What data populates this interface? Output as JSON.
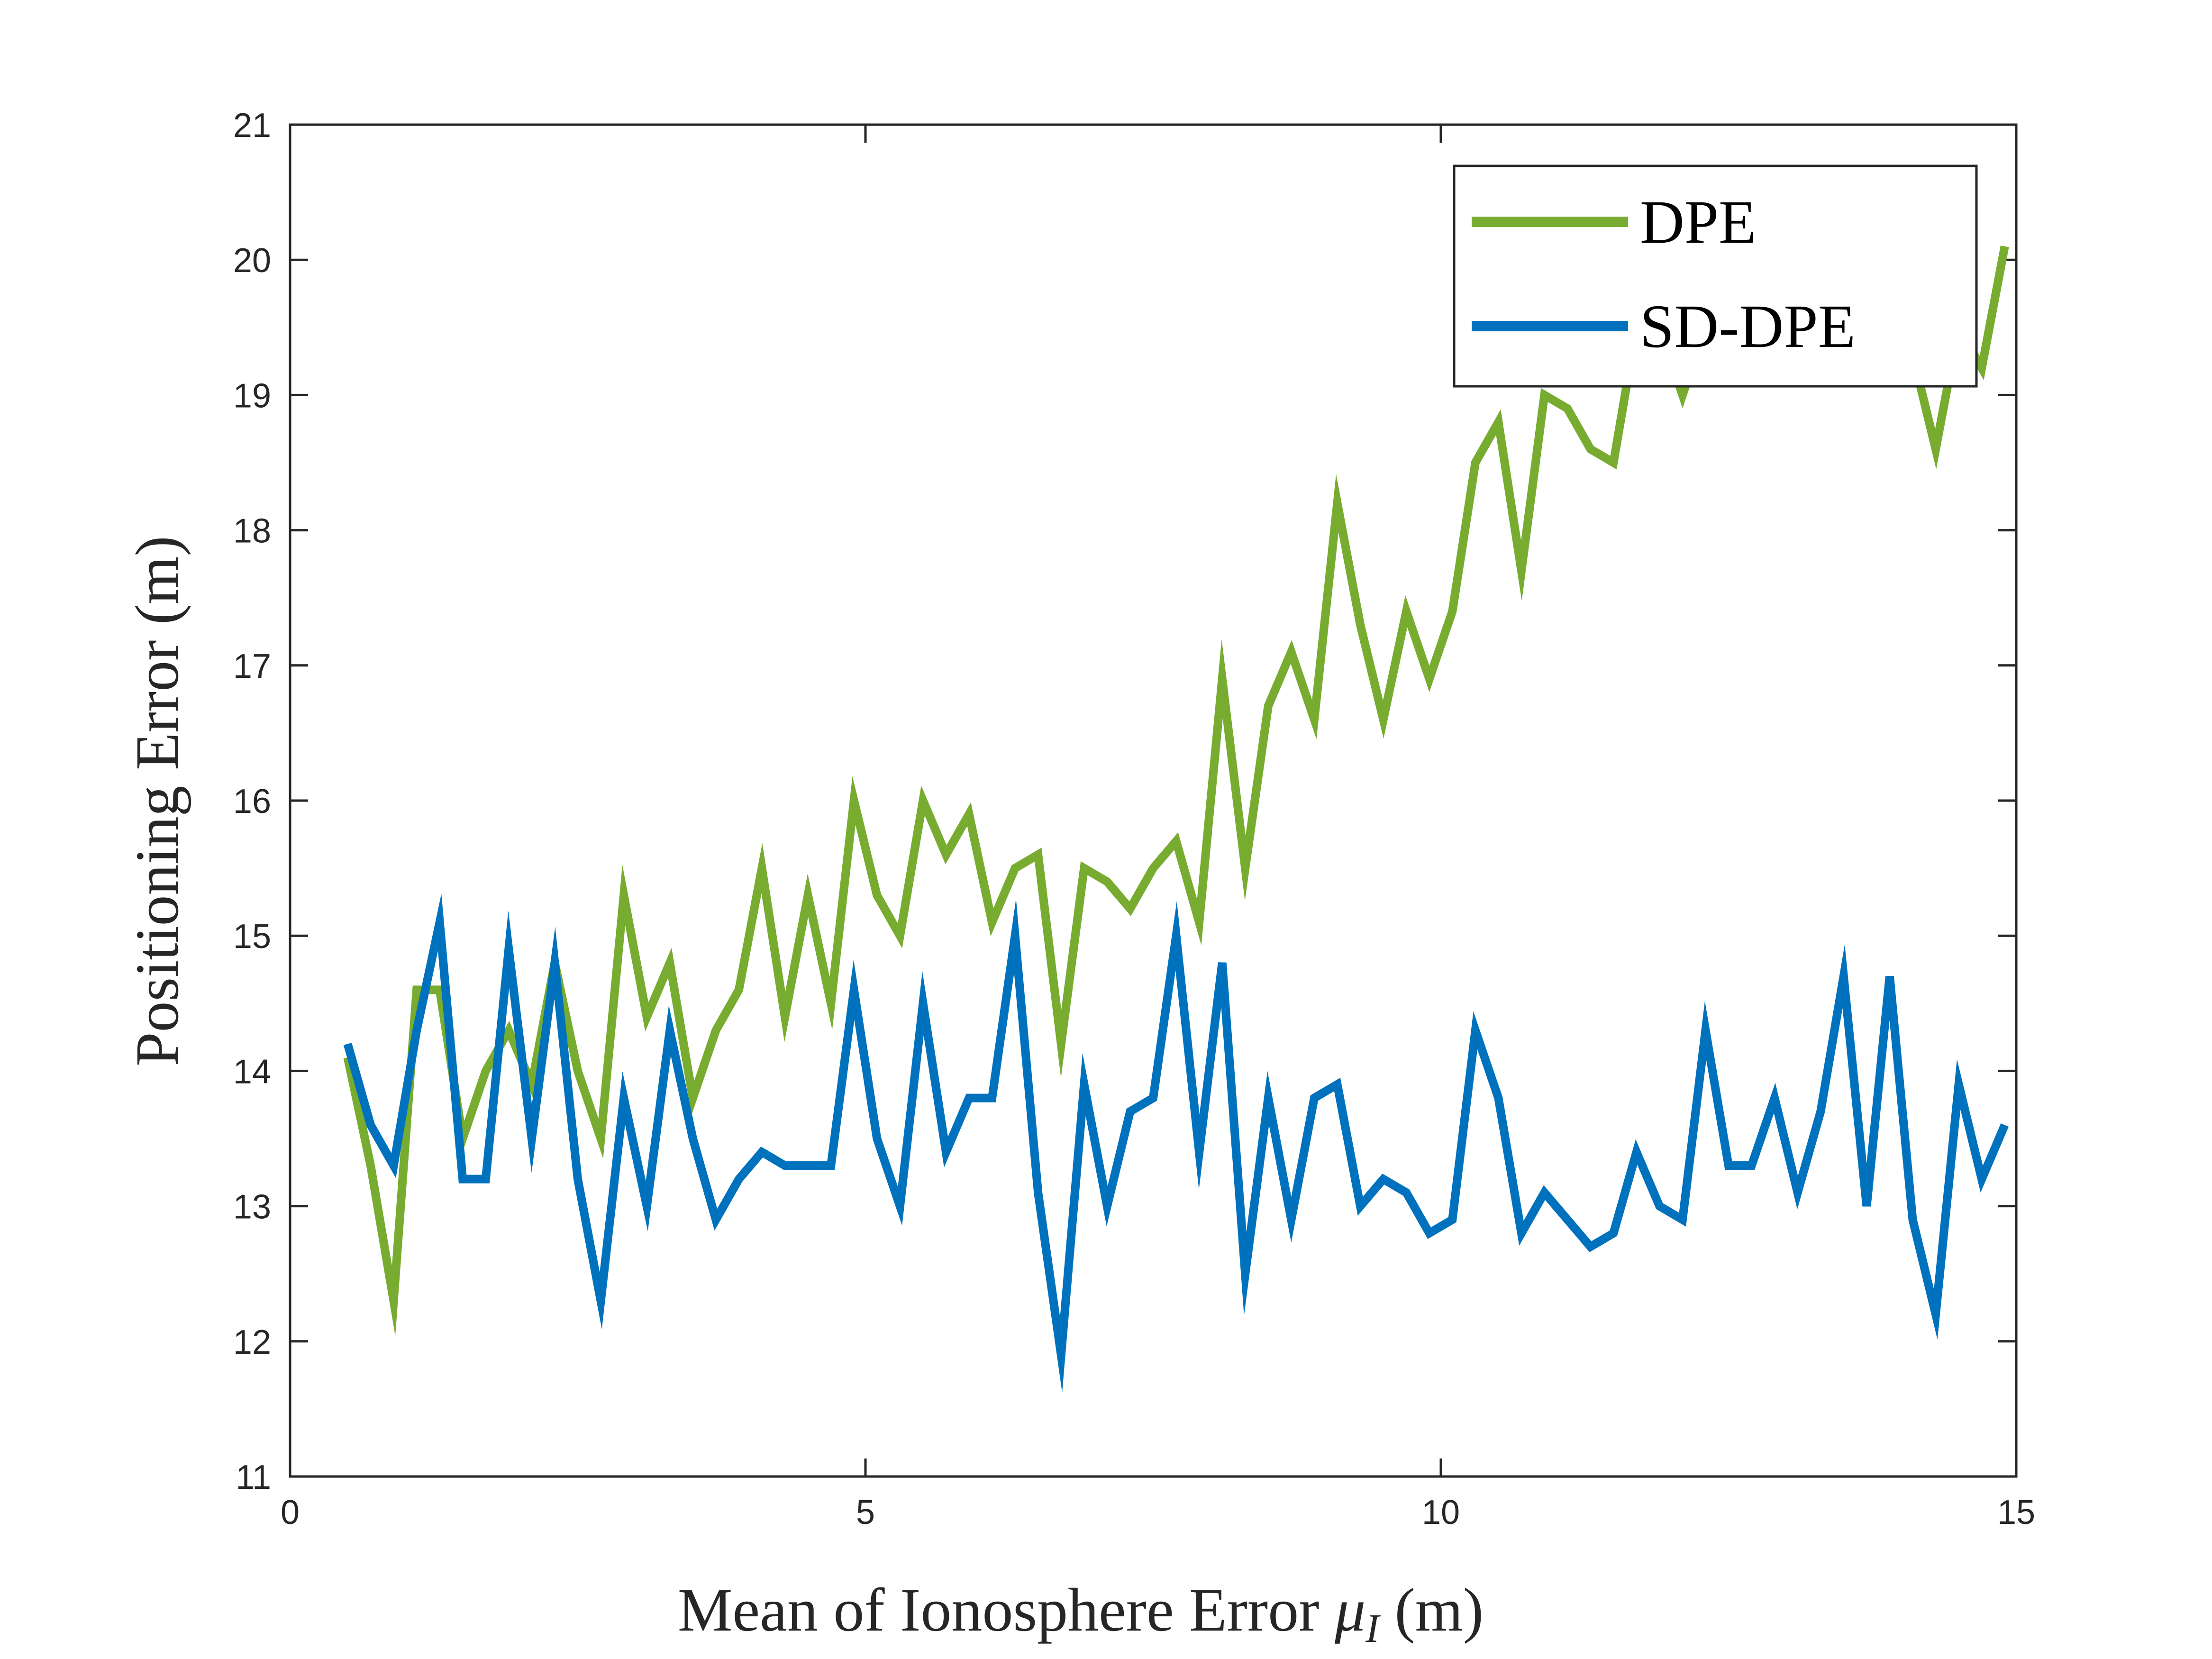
{
  "chart_data": {
    "type": "line",
    "xlabel": "Mean of Ionosphere Error",
    "xlabel_symbol": "μ",
    "xlabel_subscript": "I",
    "xlabel_unit": "(m)",
    "ylabel": "Positioning Error (m)",
    "xlim": [
      0,
      15
    ],
    "ylim": [
      11,
      21
    ],
    "x_ticks": [
      "0",
      "5",
      "10",
      "15"
    ],
    "y_ticks": [
      "11",
      "12",
      "13",
      "14",
      "15",
      "16",
      "17",
      "18",
      "19",
      "20",
      "21"
    ],
    "grid": false,
    "legend_position": "top-right",
    "x": [
      0.5,
      0.7,
      0.9,
      1.1,
      1.3,
      1.5,
      1.7,
      1.9,
      2.1,
      2.3,
      2.5,
      2.7,
      2.9,
      3.1,
      3.3,
      3.5,
      3.7,
      3.9,
      4.1,
      4.3,
      4.5,
      4.7,
      4.9,
      5.1,
      5.3,
      5.5,
      5.7,
      5.9,
      6.1,
      6.3,
      6.5,
      6.7,
      6.9,
      7.1,
      7.3,
      7.5,
      7.7,
      7.9,
      8.1,
      8.3,
      8.5,
      8.7,
      8.9,
      9.1,
      9.3,
      9.5,
      9.7,
      9.9,
      10.1,
      10.3,
      10.5,
      10.7,
      10.9,
      11.1,
      11.3,
      11.5,
      11.7,
      11.9,
      12.1,
      12.3,
      12.5,
      12.7,
      12.9,
      13.1,
      13.3,
      13.5,
      13.7,
      13.9,
      14.1,
      14.3,
      14.5,
      14.7,
      14.9
    ],
    "series": [
      {
        "name": "DPE",
        "color": "#77AC30",
        "values": [
          14.1,
          13.3,
          12.3,
          14.6,
          14.6,
          13.5,
          14.0,
          14.3,
          13.9,
          14.8,
          14.0,
          13.5,
          15.3,
          14.4,
          14.8,
          13.8,
          14.3,
          14.6,
          15.5,
          14.4,
          15.3,
          14.5,
          16.0,
          15.3,
          15.0,
          16.0,
          15.6,
          15.9,
          15.1,
          15.5,
          15.6,
          14.2,
          15.5,
          15.4,
          15.2,
          15.5,
          15.7,
          15.1,
          16.9,
          15.5,
          16.7,
          17.1,
          16.6,
          18.2,
          17.3,
          16.6,
          17.4,
          16.9,
          17.4,
          18.5,
          18.8,
          17.7,
          19.0,
          18.9,
          18.6,
          18.5,
          19.5,
          19.5,
          19.0,
          19.5,
          19.8,
          20.2,
          19.3,
          19.6,
          19.2,
          19.5,
          20.0,
          19.4,
          19.3,
          18.6,
          19.5,
          19.2,
          20.1
        ]
      },
      {
        "name": "SD-DPE",
        "color": "#0072BD",
        "values": [
          14.2,
          13.6,
          13.3,
          14.3,
          15.1,
          13.2,
          13.2,
          14.9,
          13.5,
          14.8,
          13.2,
          12.3,
          13.8,
          13.0,
          14.3,
          13.5,
          12.9,
          13.2,
          13.4,
          13.3,
          13.3,
          13.3,
          14.6,
          13.5,
          13.0,
          14.5,
          13.4,
          13.8,
          13.8,
          15.0,
          13.1,
          11.9,
          13.9,
          13.0,
          13.7,
          13.8,
          15.0,
          13.4,
          14.8,
          12.5,
          13.8,
          12.9,
          13.8,
          13.9,
          13.0,
          13.2,
          13.1,
          12.8,
          12.9,
          14.3,
          13.8,
          12.8,
          13.1,
          12.9,
          12.7,
          12.8,
          13.4,
          13.0,
          12.9,
          14.3,
          13.3,
          13.3,
          13.8,
          13.1,
          13.7,
          14.7,
          13.0,
          14.7,
          12.9,
          12.2,
          13.9,
          13.2,
          13.6
        ]
      }
    ]
  }
}
